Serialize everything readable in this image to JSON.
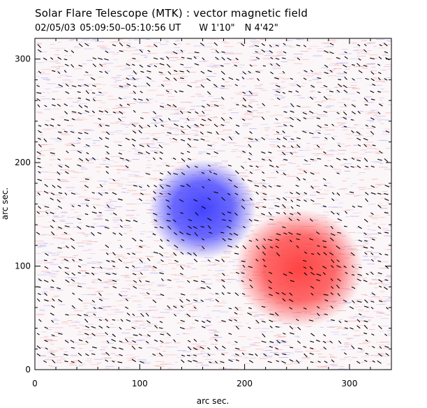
{
  "chart_data": {
    "type": "heatmap",
    "title": "Solar Flare Telescope (MTK) : vector magnetic field",
    "subtitle": {
      "date": "02/05/03",
      "time_range": "05:09:50–05:10:56 UT",
      "longitude": "W 1'10\"",
      "latitude": "N 4'42\""
    },
    "xlabel": "arc sec.",
    "ylabel": "arc sec.",
    "xlim": [
      0,
      340
    ],
    "ylim": [
      0,
      320
    ],
    "xticks": [
      0,
      100,
      200,
      300
    ],
    "yticks": [
      0,
      100,
      200,
      300
    ],
    "longitudinal_field_sources": [
      {
        "name": "negative-polarity-spot",
        "x": 160,
        "y": 155,
        "radius": 32,
        "color": "#3a3aff"
      },
      {
        "name": "positive-polarity-spot",
        "x": 252,
        "y": 98,
        "radius": 38,
        "color": "#ff3a3a"
      }
    ],
    "transverse_field_vectors": "short black dashes over the field of view, oriented roughly along the horizontal-diagonal direction"
  }
}
